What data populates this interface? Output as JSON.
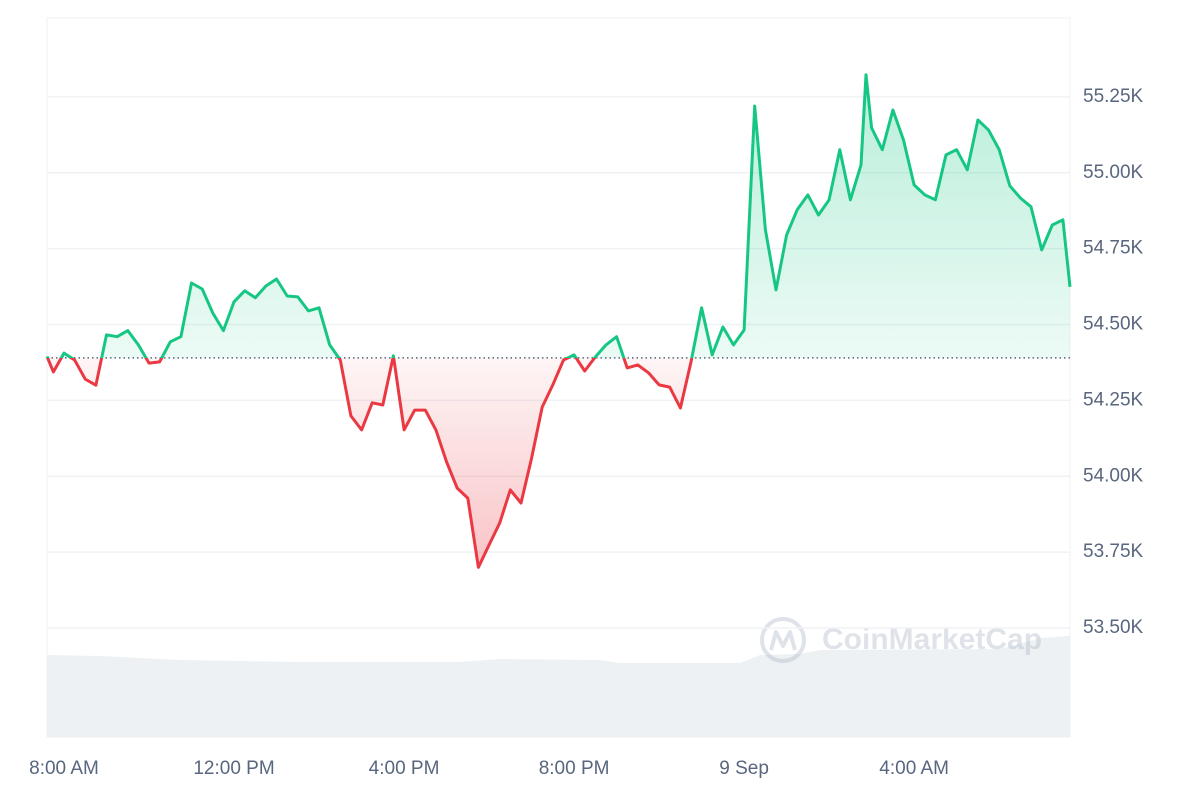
{
  "chart_data": {
    "type": "line",
    "x": [
      -24,
      -15,
      0,
      15,
      30,
      45,
      60,
      75,
      90,
      105,
      120,
      135,
      150,
      165,
      180,
      195,
      210,
      225,
      240,
      255,
      270,
      285,
      300,
      315,
      330,
      345,
      360,
      375,
      390,
      405,
      420,
      435,
      450,
      465,
      480,
      495,
      510,
      525,
      540,
      555,
      570,
      585,
      600,
      615,
      630,
      645,
      660,
      675,
      690,
      705,
      720,
      735,
      750,
      765,
      780,
      795,
      810,
      825,
      840,
      855,
      870,
      885,
      900,
      915,
      930,
      945,
      960,
      975,
      990,
      1005,
      1020,
      1035,
      1050,
      1065,
      1080,
      1095,
      1110,
      1125,
      1132,
      1140,
      1155,
      1170,
      1185,
      1200,
      1215,
      1230,
      1245,
      1260,
      1275,
      1290,
      1305,
      1320,
      1335,
      1350,
      1365,
      1380,
      1395,
      1410,
      1420
    ],
    "series": [
      {
        "values": [
          54395,
          54344,
          54406,
          54383,
          54320,
          54300,
          54466,
          54460,
          54480,
          54433,
          54373,
          54377,
          54443,
          54460,
          54637,
          54617,
          54538,
          54480,
          54575,
          54611,
          54588,
          54627,
          54650,
          54594,
          54591,
          54545,
          54555,
          54433,
          54383,
          54199,
          54153,
          54242,
          54235,
          54397,
          54153,
          54218,
          54218,
          54153,
          54047,
          53961,
          53928,
          53700,
          53774,
          53846,
          53955,
          53912,
          54060,
          54228,
          54301,
          54383,
          54400,
          54347,
          54393,
          54433,
          54460,
          54357,
          54367,
          54341,
          54301,
          54294,
          54225,
          54377,
          54555,
          54400,
          54492,
          54433,
          54482,
          55220,
          54812,
          54614,
          54795,
          54878,
          54927,
          54861,
          54911,
          55076,
          54911,
          55026,
          55323,
          55148,
          55076,
          55207,
          55108,
          54960,
          54927,
          54911,
          55059,
          55076,
          55010,
          55174,
          55141,
          55076,
          54957,
          54917,
          54888,
          54746,
          54828,
          54845,
          54624
        ]
      }
    ],
    "baseline": 54390,
    "up_color": "#16c784",
    "down_color": "#ea3943",
    "xlim": [
      -24,
      1420
    ],
    "xticks": [
      {
        "value": 0,
        "label": "8:00 AM"
      },
      {
        "value": 240,
        "label": "12:00 PM"
      },
      {
        "value": 480,
        "label": "4:00 PM"
      },
      {
        "value": 720,
        "label": "8:00 PM"
      },
      {
        "value": 960,
        "label": "9 Sep"
      },
      {
        "value": 1200,
        "label": "4:00 AM"
      }
    ],
    "ylim": [
      53141,
      55510
    ],
    "yticks": [
      {
        "value": 53500,
        "label": "53.50K"
      },
      {
        "value": 53750,
        "label": "53.75K"
      },
      {
        "value": 54000,
        "label": "54.00K"
      },
      {
        "value": 54250,
        "label": "54.25K"
      },
      {
        "value": 54500,
        "label": "54.50K"
      },
      {
        "value": 54750,
        "label": "54.75K"
      },
      {
        "value": 55000,
        "label": "55.00K"
      },
      {
        "value": 55250,
        "label": "55.25K"
      }
    ],
    "grid": true,
    "watermark": "CoinMarketCap"
  }
}
